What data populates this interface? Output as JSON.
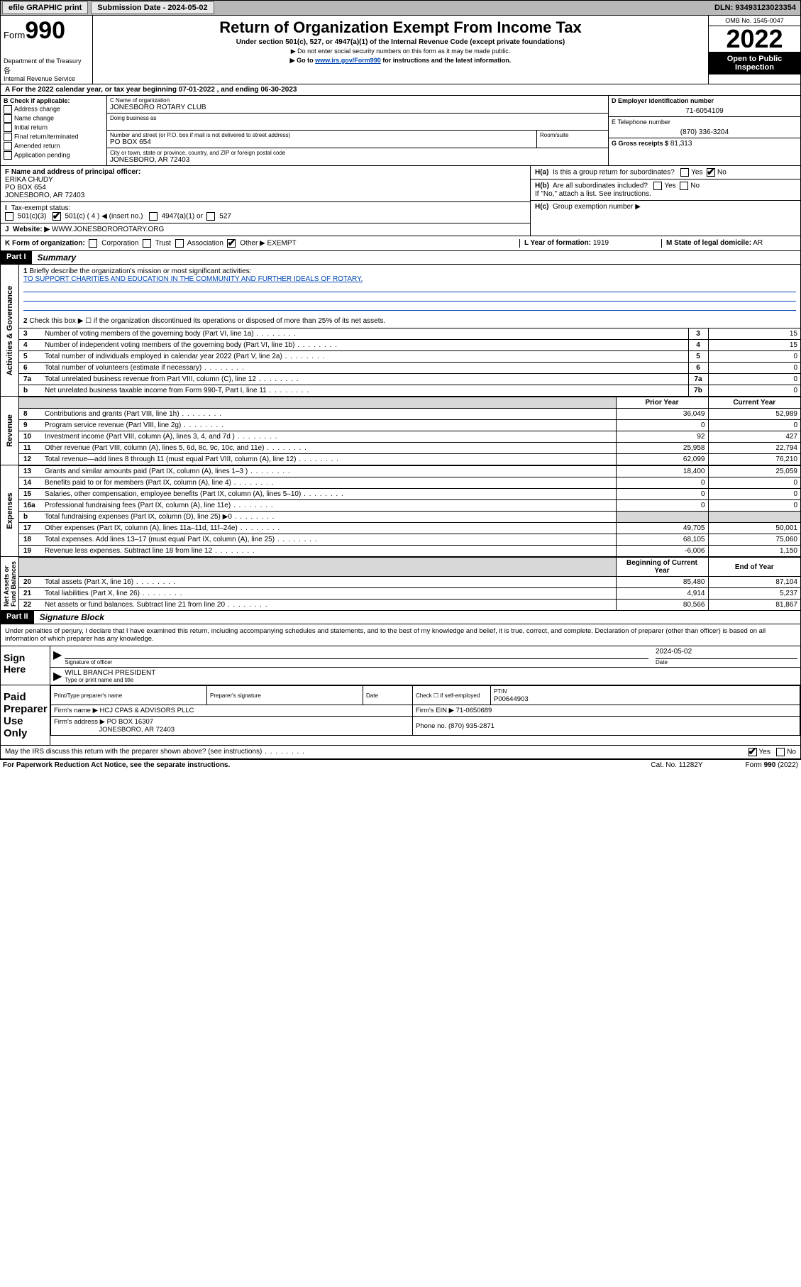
{
  "topbar": {
    "efile": "efile GRAPHIC print",
    "submission_label": "Submission Date - 2024-05-02",
    "dln": "DLN: 93493123023354"
  },
  "header": {
    "form_prefix": "Form",
    "form_number": "990",
    "dept": "Department of the Treasury",
    "irs": "Internal Revenue Service",
    "title": "Return of Organization Exempt From Income Tax",
    "subtitle": "Under section 501(c), 527, or 4947(a)(1) of the Internal Revenue Code (except private foundations)",
    "note1": "▶ Do not enter social security numbers on this form as it may be made public.",
    "note2_pre": "▶ Go to ",
    "note2_link": "www.irs.gov/Form990",
    "note2_post": " for instructions and the latest information.",
    "omb": "OMB No. 1545-0047",
    "year": "2022",
    "open": "Open to Public Inspection"
  },
  "period": "A For the 2022 calendar year, or tax year beginning 07-01-2022    , and ending 06-30-2023",
  "sectionB": {
    "header": "B Check if applicable:",
    "items": [
      "Address change",
      "Name change",
      "Initial return",
      "Final return/terminated",
      "Amended return",
      "Application pending"
    ]
  },
  "sectionC": {
    "name_lbl": "C Name of organization",
    "name": "JONESBORO ROTARY CLUB",
    "dba_lbl": "Doing business as",
    "dba": "",
    "addr_lbl": "Number and street (or P.O. box if mail is not delivered to street address)",
    "room_lbl": "Room/suite",
    "addr": "PO BOX 654",
    "city_lbl": "City or town, state or province, country, and ZIP or foreign postal code",
    "city": "JONESBORO, AR  72403"
  },
  "sectionD": {
    "lbl": "D Employer identification number",
    "val": "71-6054109"
  },
  "sectionE": {
    "lbl": "E Telephone number",
    "val": "(870) 336-3204"
  },
  "sectionG": {
    "lbl": "G Gross receipts $",
    "val": "81,313"
  },
  "sectionF": {
    "lbl": "F Name and address of principal officer:",
    "name": "ERIKA CHUDY",
    "addr1": "PO BOX 654",
    "addr2": "JONESBORO, AR  72403"
  },
  "sectionH": {
    "a": "Is this a group return for subordinates?",
    "b": "Are all subordinates included?",
    "b_note": "If \"No,\" attach a list. See instructions.",
    "c": "Group exemption number ▶"
  },
  "sectionI": {
    "lbl": "Tax-exempt status:",
    "opts": [
      "501(c)(3)",
      "501(c) ( 4 ) ◀ (insert no.)",
      "4947(a)(1) or",
      "527"
    ]
  },
  "sectionJ": {
    "lbl": "Website: ▶",
    "val": "WWW.JONESBOROROTARY.ORG"
  },
  "sectionK": {
    "lbl": "K Form of organization:",
    "opts": [
      "Corporation",
      "Trust",
      "Association",
      "Other ▶"
    ],
    "other": "EXEMPT"
  },
  "sectionL": {
    "lbl": "L Year of formation:",
    "val": "1919"
  },
  "sectionM": {
    "lbl": "M State of legal domicile:",
    "val": "AR"
  },
  "part1": {
    "hdr": "Part I",
    "title": "Summary",
    "mission_lbl": "Briefly describe the organization's mission or most significant activities:",
    "mission": "TO SUPPORT CHARITIES AND EDUCATION IN THE COMMUNITY AND FURTHER IDEALS OF ROTARY.",
    "line2": "Check this box ▶ ☐  if the organization discontinued its operations or disposed of more than 25% of its net assets.",
    "gov_rows": [
      {
        "n": "3",
        "t": "Number of voting members of the governing body (Part VI, line 1a)",
        "box": "3",
        "v": "15"
      },
      {
        "n": "4",
        "t": "Number of independent voting members of the governing body (Part VI, line 1b)",
        "box": "4",
        "v": "15"
      },
      {
        "n": "5",
        "t": "Total number of individuals employed in calendar year 2022 (Part V, line 2a)",
        "box": "5",
        "v": "0"
      },
      {
        "n": "6",
        "t": "Total number of volunteers (estimate if necessary)",
        "box": "6",
        "v": "0"
      },
      {
        "n": "7a",
        "t": "Total unrelated business revenue from Part VIII, column (C), line 12",
        "box": "7a",
        "v": "0"
      },
      {
        "n": "b",
        "t": "Net unrelated business taxable income from Form 990-T, Part I, line 11",
        "box": "7b",
        "v": "0"
      }
    ],
    "col_prior": "Prior Year",
    "col_current": "Current Year",
    "rev_rows": [
      {
        "n": "8",
        "t": "Contributions and grants (Part VIII, line 1h)",
        "p": "36,049",
        "c": "52,989"
      },
      {
        "n": "9",
        "t": "Program service revenue (Part VIII, line 2g)",
        "p": "0",
        "c": "0"
      },
      {
        "n": "10",
        "t": "Investment income (Part VIII, column (A), lines 3, 4, and 7d )",
        "p": "92",
        "c": "427"
      },
      {
        "n": "11",
        "t": "Other revenue (Part VIII, column (A), lines 5, 6d, 8c, 9c, 10c, and 11e)",
        "p": "25,958",
        "c": "22,794"
      },
      {
        "n": "12",
        "t": "Total revenue—add lines 8 through 11 (must equal Part VIII, column (A), line 12)",
        "p": "62,099",
        "c": "76,210"
      }
    ],
    "exp_rows": [
      {
        "n": "13",
        "t": "Grants and similar amounts paid (Part IX, column (A), lines 1–3 )",
        "p": "18,400",
        "c": "25,059"
      },
      {
        "n": "14",
        "t": "Benefits paid to or for members (Part IX, column (A), line 4)",
        "p": "0",
        "c": "0"
      },
      {
        "n": "15",
        "t": "Salaries, other compensation, employee benefits (Part IX, column (A), lines 5–10)",
        "p": "0",
        "c": "0"
      },
      {
        "n": "16a",
        "t": "Professional fundraising fees (Part IX, column (A), line 11e)",
        "p": "0",
        "c": "0"
      },
      {
        "n": "b",
        "t": "Total fundraising expenses (Part IX, column (D), line 25) ▶0",
        "p": "grey",
        "c": "grey"
      },
      {
        "n": "17",
        "t": "Other expenses (Part IX, column (A), lines 11a–11d, 11f–24e)",
        "p": "49,705",
        "c": "50,001"
      },
      {
        "n": "18",
        "t": "Total expenses. Add lines 13–17 (must equal Part IX, column (A), line 25)",
        "p": "68,105",
        "c": "75,060"
      },
      {
        "n": "19",
        "t": "Revenue less expenses. Subtract line 18 from line 12",
        "p": "-6,006",
        "c": "1,150"
      }
    ],
    "col_begin": "Beginning of Current Year",
    "col_end": "End of Year",
    "net_rows": [
      {
        "n": "20",
        "t": "Total assets (Part X, line 16)",
        "p": "85,480",
        "c": "87,104"
      },
      {
        "n": "21",
        "t": "Total liabilities (Part X, line 26)",
        "p": "4,914",
        "c": "5,237"
      },
      {
        "n": "22",
        "t": "Net assets or fund balances. Subtract line 21 from line 20",
        "p": "80,566",
        "c": "81,867"
      }
    ]
  },
  "part2": {
    "hdr": "Part II",
    "title": "Signature Block",
    "decl": "Under penalties of perjury, I declare that I have examined this return, including accompanying schedules and statements, and to the best of my knowledge and belief, it is true, correct, and complete. Declaration of preparer (other than officer) is based on all information of which preparer has any knowledge.",
    "sign_here": "Sign Here",
    "sig_officer": "Signature of officer",
    "sig_date_lbl": "Date",
    "sig_date": "2024-05-02",
    "officer_name": "WILL BRANCH  PRESIDENT",
    "officer_lbl": "Type or print name and title",
    "paid": "Paid Preparer Use Only",
    "prep_name_lbl": "Print/Type preparer's name",
    "prep_sig_lbl": "Preparer's signature",
    "date_lbl": "Date",
    "check_lbl": "Check ☐ if self-employed",
    "ptin_lbl": "PTIN",
    "ptin": "P00644903",
    "firm_name_lbl": "Firm's name    ▶",
    "firm_name": "HCJ CPAS & ADVISORS PLLC",
    "firm_ein_lbl": "Firm's EIN ▶",
    "firm_ein": "71-0650689",
    "firm_addr_lbl": "Firm's address ▶",
    "firm_addr1": "PO BOX 16307",
    "firm_addr2": "JONESBORO, AR  72403",
    "phone_lbl": "Phone no.",
    "phone": "(870) 935-2871",
    "discuss": "May the IRS discuss this return with the preparer shown above? (see instructions)"
  },
  "footer": {
    "left": "For Paperwork Reduction Act Notice, see the separate instructions.",
    "mid": "Cat. No. 11282Y",
    "right": "Form 990 (2022)"
  },
  "labels": {
    "yes": "Yes",
    "no": "No"
  }
}
